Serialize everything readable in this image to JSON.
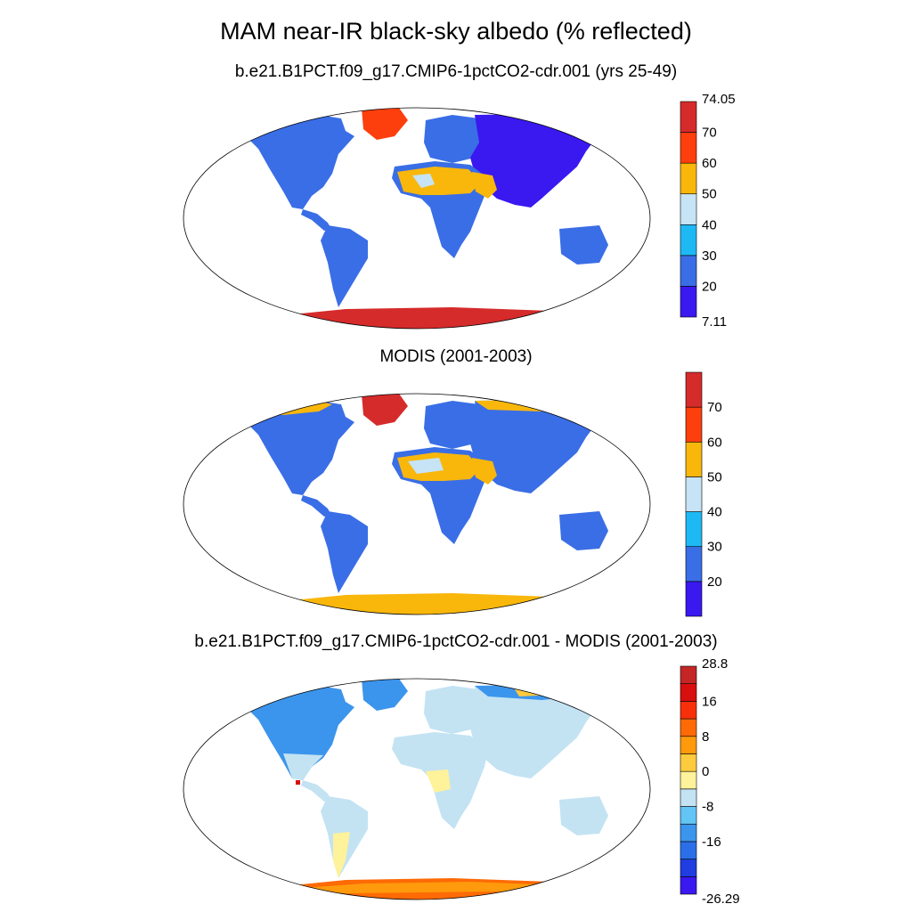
{
  "figure": {
    "title": "MAM near-IR black-sky albedo (% reflected)"
  },
  "panels": [
    {
      "title": "b.e21.B1PCT.f09_g17.CMIP6-1pctCO2-cdr.001 (yrs 25-49)",
      "colorbar": {
        "colors": [
          "#3a18f0",
          "#3a6ee6",
          "#1eb9f5",
          "#c6e4f5",
          "#f9b70c",
          "#fd3f0d",
          "#d52b2b"
        ],
        "labels": [
          "7.11",
          "20",
          "30",
          "40",
          "50",
          "60",
          "70",
          "74.05"
        ]
      }
    },
    {
      "title": "MODIS (2001-2003)",
      "colorbar": {
        "colors": [
          "#3a18f0",
          "#3a6ee6",
          "#1eb9f5",
          "#c6e4f5",
          "#f9b70c",
          "#fd3f0d",
          "#d52b2b"
        ],
        "labels": [
          "20",
          "30",
          "40",
          "50",
          "60",
          "70"
        ]
      }
    },
    {
      "title": "b.e21.B1PCT.f09_g17.CMIP6-1pctCO2-cdr.001 - MODIS (2001-2003)",
      "colorbar": {
        "colors": [
          "#3a18f0",
          "#1f3de0",
          "#2b6fe8",
          "#3c95ec",
          "#62c5f5",
          "#c3e3f3",
          "#fef29a",
          "#fecb3e",
          "#fe9a0c",
          "#fe6a05",
          "#f8300a",
          "#d80f0f",
          "#c42626"
        ],
        "labels": [
          "-26.29",
          "-16",
          "-8",
          "0",
          "8",
          "16",
          "28.8"
        ]
      }
    }
  ],
  "map_colors": {
    "land_low": "#3a6ee6",
    "land_dark": "#3a18f0",
    "desert": "#f9b70c",
    "desert_light": "#c6e4f5",
    "ice_high": "#d52b2b",
    "ice_mid": "#fd3f0d",
    "diff_land": "#c3e3f3",
    "diff_pos": "#fef29a",
    "diff_neg": "#3c95ec",
    "diff_ant": "#fe6a05"
  }
}
